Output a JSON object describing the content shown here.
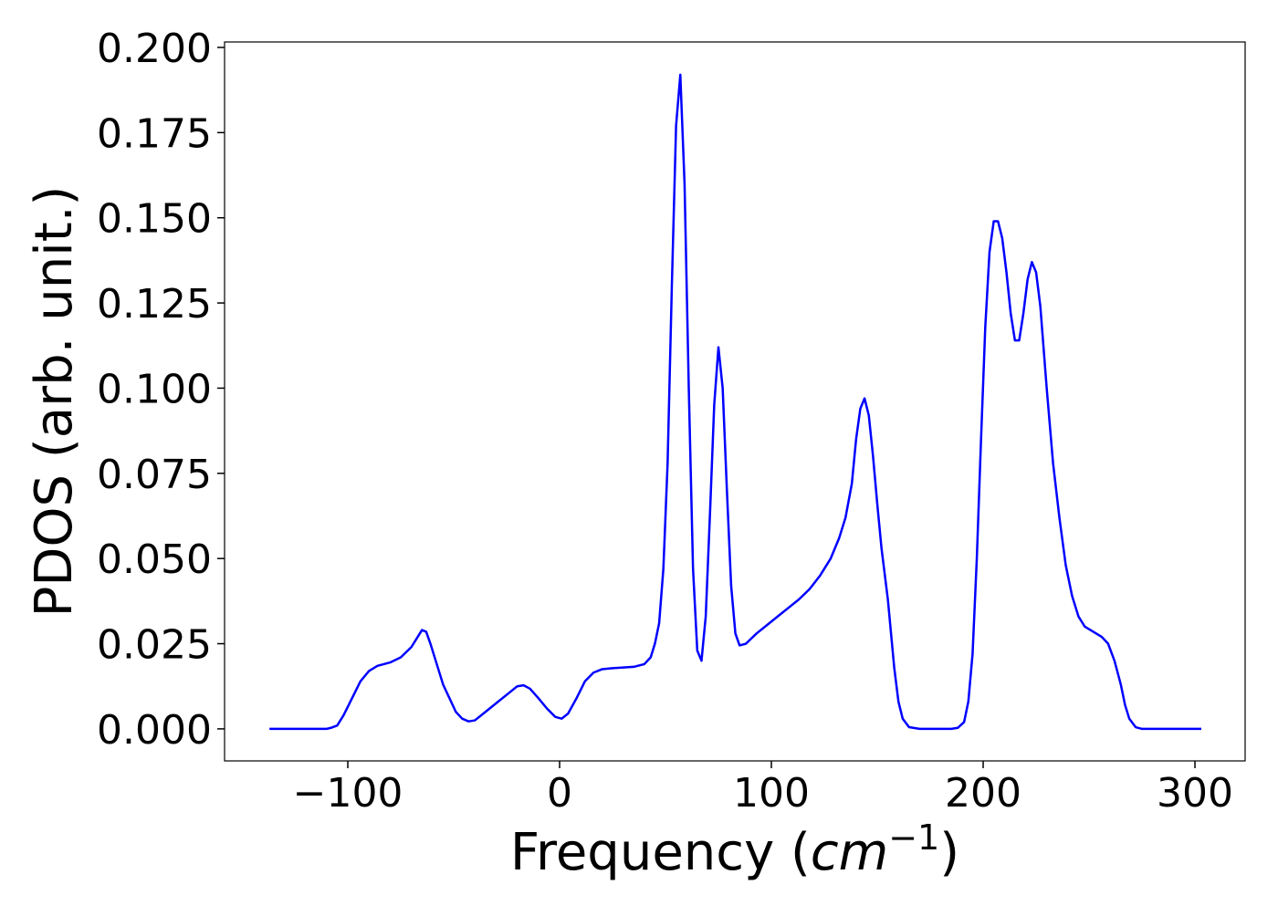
{
  "chart_data": {
    "type": "line",
    "xlabel": {
      "text": "Frequency (",
      "math": "cm",
      "superscript": "−1",
      "close": ")"
    },
    "ylabel": "PDOS (arb. unit.)",
    "xlim": [
      -158.2,
      323.7
    ],
    "ylim": [
      -0.0094,
      0.2016
    ],
    "xticks": [
      {
        "value": -100,
        "label": "−100"
      },
      0,
      100,
      200,
      300
    ],
    "yticks": [
      {
        "value": 0,
        "label": "0.000"
      },
      {
        "value": 0.025,
        "label": "0.025"
      },
      {
        "value": 0.05,
        "label": "0.050"
      },
      {
        "value": 0.075,
        "label": "0.075"
      },
      {
        "value": 0.1,
        "label": "0.100"
      },
      {
        "value": 0.125,
        "label": "0.125"
      },
      {
        "value": 0.15,
        "label": "0.150"
      },
      {
        "value": 0.175,
        "label": "0.175"
      },
      {
        "value": 0.2,
        "label": "0.200"
      }
    ],
    "grid": false,
    "series": [
      {
        "color": "#0000ff",
        "x": [
          -137,
          -110,
          -108,
          -105,
          -102,
          -98,
          -94,
          -90,
          -86,
          -80,
          -75,
          -70,
          -67,
          -65,
          -63,
          -61,
          -58,
          -55,
          -52,
          -49,
          -46,
          -43,
          -40,
          -35,
          -30,
          -25,
          -20,
          -17,
          -14,
          -10,
          -6,
          -2,
          1,
          4,
          8,
          12,
          16,
          20,
          25,
          30,
          35,
          40,
          43,
          45,
          47,
          49,
          51,
          53,
          55,
          57,
          59,
          61,
          63,
          65,
          67,
          69,
          71,
          73,
          75,
          77,
          79,
          81,
          83,
          85,
          88,
          93,
          98,
          103,
          108,
          113,
          118,
          123,
          128,
          132,
          135,
          138,
          140,
          142,
          144,
          146,
          148,
          150,
          152,
          155,
          158,
          160,
          162,
          165,
          170,
          185,
          188,
          191,
          193,
          195,
          197,
          199,
          201,
          203,
          205,
          207,
          209,
          211,
          213,
          215,
          217,
          219,
          221,
          223,
          225,
          227,
          230,
          233,
          236,
          239,
          242,
          245,
          248,
          252,
          256,
          259,
          262,
          265,
          267,
          269,
          272,
          275,
          303
        ],
        "values": [
          0,
          0,
          0.0003,
          0.001,
          0.004,
          0.009,
          0.014,
          0.017,
          0.0185,
          0.0195,
          0.021,
          0.024,
          0.027,
          0.029,
          0.0285,
          0.025,
          0.019,
          0.013,
          0.009,
          0.005,
          0.003,
          0.0022,
          0.0025,
          0.005,
          0.0075,
          0.01,
          0.0125,
          0.0128,
          0.0118,
          0.009,
          0.006,
          0.0035,
          0.003,
          0.0045,
          0.009,
          0.014,
          0.0165,
          0.0175,
          0.0178,
          0.018,
          0.0182,
          0.019,
          0.021,
          0.025,
          0.031,
          0.047,
          0.078,
          0.13,
          0.177,
          0.192,
          0.16,
          0.1,
          0.047,
          0.023,
          0.02,
          0.033,
          0.063,
          0.095,
          0.112,
          0.1,
          0.07,
          0.042,
          0.028,
          0.0245,
          0.025,
          0.028,
          0.0305,
          0.033,
          0.0355,
          0.038,
          0.041,
          0.045,
          0.05,
          0.056,
          0.062,
          0.072,
          0.085,
          0.094,
          0.097,
          0.092,
          0.08,
          0.066,
          0.053,
          0.038,
          0.018,
          0.008,
          0.003,
          0.0005,
          0,
          0,
          0.0003,
          0.002,
          0.008,
          0.022,
          0.05,
          0.085,
          0.118,
          0.14,
          0.149,
          0.149,
          0.144,
          0.134,
          0.122,
          0.114,
          0.114,
          0.122,
          0.132,
          0.137,
          0.134,
          0.124,
          0.1,
          0.078,
          0.062,
          0.048,
          0.039,
          0.033,
          0.03,
          0.0285,
          0.027,
          0.025,
          0.02,
          0.013,
          0.007,
          0.003,
          0.0005,
          0,
          0
        ]
      }
    ]
  }
}
